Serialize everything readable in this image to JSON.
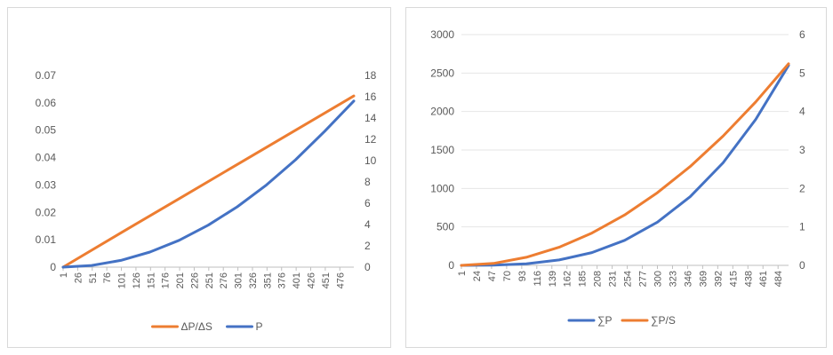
{
  "chart_data": [
    {
      "type": "line",
      "title": "",
      "xlabel": "",
      "ylabel": "",
      "x_ticks": [
        "1",
        "26",
        "51",
        "76",
        "101",
        "126",
        "151",
        "176",
        "201",
        "226",
        "251",
        "276",
        "301",
        "326",
        "351",
        "376",
        "401",
        "426",
        "451",
        "476"
      ],
      "xlim": [
        1,
        500
      ],
      "y_left": {
        "ylim": [
          0,
          0.07
        ],
        "ticks": [
          "0",
          "0.01",
          "0.02",
          "0.03",
          "0.04",
          "0.05",
          "0.06",
          "0.07"
        ]
      },
      "y_right": {
        "ylim": [
          0,
          18
        ],
        "ticks": [
          "0",
          "2",
          "4",
          "6",
          "8",
          "10",
          "12",
          "14",
          "16",
          "18"
        ]
      },
      "grid": false,
      "legend": "bottom",
      "series": [
        {
          "name": "ΔP/ΔS",
          "axis": "left",
          "color": "#ed7d31",
          "x": [
            1,
            100,
            200,
            300,
            400,
            500
          ],
          "values": [
            0.0,
            0.0125,
            0.025,
            0.0375,
            0.05,
            0.0625
          ]
        },
        {
          "name": "P",
          "axis": "right",
          "color": "#4472c4",
          "x": [
            1,
            50,
            100,
            150,
            200,
            250,
            300,
            350,
            400,
            450,
            500
          ],
          "values": [
            0.0,
            0.16,
            0.63,
            1.42,
            2.52,
            3.94,
            5.67,
            7.72,
            10.08,
            12.76,
            15.6
          ]
        }
      ]
    },
    {
      "type": "line",
      "title": "",
      "xlabel": "",
      "ylabel": "",
      "x_ticks": [
        "1",
        "24",
        "47",
        "70",
        "93",
        "116",
        "139",
        "162",
        "185",
        "208",
        "231",
        "254",
        "277",
        "300",
        "323",
        "346",
        "369",
        "392",
        "415",
        "438",
        "461",
        "484"
      ],
      "xlim": [
        1,
        500
      ],
      "y_left": {
        "ylim": [
          0,
          3000
        ],
        "ticks": [
          "0",
          "500",
          "1000",
          "1500",
          "2000",
          "2500",
          "3000"
        ]
      },
      "y_right": {
        "ylim": [
          0,
          6
        ],
        "ticks": [
          "0",
          "1",
          "2",
          "3",
          "4",
          "5",
          "6"
        ]
      },
      "grid": true,
      "legend": "bottom",
      "series": [
        {
          "name": "∑P",
          "axis": "left",
          "color": "#4472c4",
          "x": [
            1,
            50,
            100,
            150,
            200,
            250,
            300,
            350,
            400,
            450,
            500
          ],
          "values": [
            0,
            2.6,
            21,
            70,
            166,
            325,
            562,
            893,
            1333,
            1898,
            2600
          ]
        },
        {
          "name": "∑P/S",
          "axis": "right",
          "color": "#ed7d31",
          "x": [
            1,
            50,
            100,
            150,
            200,
            250,
            300,
            350,
            400,
            450,
            500
          ],
          "values": [
            0,
            0.05,
            0.21,
            0.47,
            0.84,
            1.31,
            1.89,
            2.57,
            3.36,
            4.25,
            5.24
          ]
        }
      ]
    }
  ]
}
